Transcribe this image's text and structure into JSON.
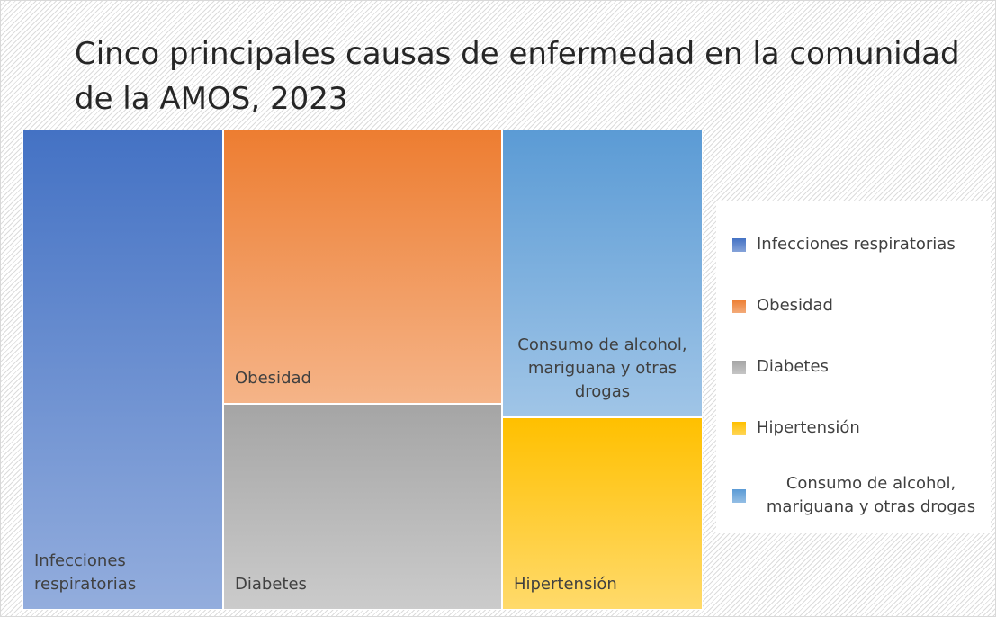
{
  "chart_data": {
    "type": "treemap",
    "title": "Cinco principales causas de enfermedad en la comunidad de la AMOS, 2023",
    "categories": [
      "Infecciones respiratorias",
      "Obesidad",
      "Diabetes",
      "Hipertensión",
      "Consumo de alcohol, mariguana y otras drogas"
    ],
    "values": [
      29.5,
      23.4,
      17.6,
      11.8,
      17.7
    ],
    "colors": [
      "#4472c4",
      "#ed7d31",
      "#a5a5a5",
      "#ffc000",
      "#5b9bd5"
    ],
    "legend": "right"
  }
}
